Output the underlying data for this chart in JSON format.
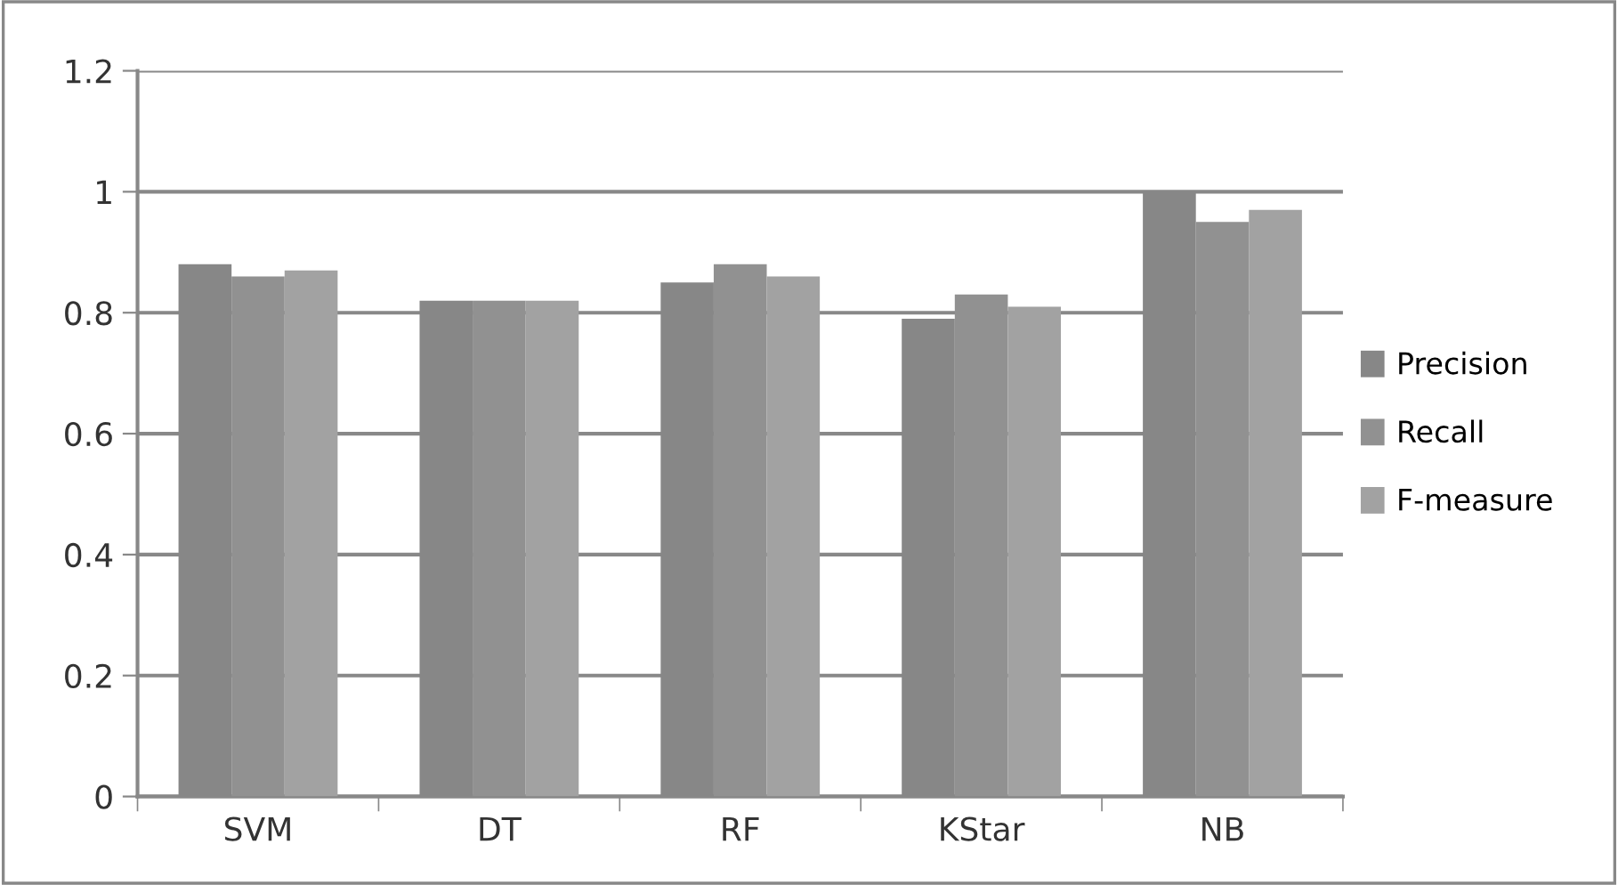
{
  "chart_data": {
    "type": "bar",
    "categories": [
      "SVM",
      "DT",
      "RF",
      "KStar",
      "NB"
    ],
    "series": [
      {
        "name": "Precision",
        "color": "#878787",
        "values": [
          0.88,
          0.82,
          0.85,
          0.79,
          1.0
        ]
      },
      {
        "name": "Recall",
        "color": "#919191",
        "values": [
          0.86,
          0.82,
          0.88,
          0.83,
          0.95
        ]
      },
      {
        "name": "F-measure",
        "color": "#a2a2a2",
        "values": [
          0.87,
          0.82,
          0.86,
          0.81,
          0.97
        ]
      }
    ],
    "ylim": [
      0,
      1.2
    ],
    "yticks": [
      0,
      0.2,
      0.4,
      0.6,
      0.8,
      1,
      1.2
    ],
    "grid": "y",
    "legend": "right"
  }
}
